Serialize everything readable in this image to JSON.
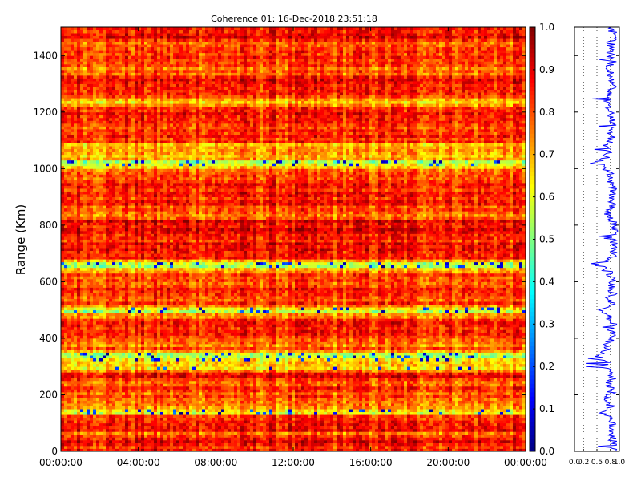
{
  "chart_data": [
    {
      "type": "heatmap",
      "title": "Coherence 01: 16-Dec-2018 23:51:18",
      "xlabel": "",
      "ylabel": "Range (Km)",
      "x_ticks": [
        "00:00:00",
        "04:00:00",
        "08:00:00",
        "12:00:00",
        "16:00:00",
        "20:00:00",
        "00:00:00"
      ],
      "x_range_hours": [
        0,
        24
      ],
      "y_ticks": [
        0,
        200,
        400,
        600,
        800,
        1000,
        1200,
        1400
      ],
      "ylim": [
        0,
        1500
      ],
      "colormap": "jet",
      "value_range": [
        0.0,
        1.0
      ],
      "colorbar_ticks": [
        "0.0",
        "0.1",
        "0.2",
        "0.3",
        "0.4",
        "0.5",
        "0.6",
        "0.7",
        "0.8",
        "0.9",
        "1.0"
      ],
      "grid": false,
      "range_profile_mean": [
        [
          0,
          0.85
        ],
        [
          20,
          0.84
        ],
        [
          40,
          0.86
        ],
        [
          60,
          0.78
        ],
        [
          80,
          0.85
        ],
        [
          100,
          0.82
        ],
        [
          120,
          0.86
        ],
        [
          140,
          0.58
        ],
        [
          160,
          0.82
        ],
        [
          180,
          0.7
        ],
        [
          200,
          0.8
        ],
        [
          220,
          0.84
        ],
        [
          240,
          0.78
        ],
        [
          260,
          0.86
        ],
        [
          280,
          0.82
        ],
        [
          300,
          0.6
        ],
        [
          320,
          0.75
        ],
        [
          340,
          0.5
        ],
        [
          360,
          0.78
        ],
        [
          380,
          0.72
        ],
        [
          400,
          0.84
        ],
        [
          420,
          0.8
        ],
        [
          440,
          0.86
        ],
        [
          460,
          0.82
        ],
        [
          480,
          0.78
        ],
        [
          500,
          0.55
        ],
        [
          520,
          0.83
        ],
        [
          540,
          0.8
        ],
        [
          560,
          0.86
        ],
        [
          580,
          0.8
        ],
        [
          600,
          0.85
        ],
        [
          620,
          0.82
        ],
        [
          640,
          0.78
        ],
        [
          660,
          0.5
        ],
        [
          680,
          0.82
        ],
        [
          700,
          0.86
        ],
        [
          720,
          0.84
        ],
        [
          740,
          0.88
        ],
        [
          760,
          0.84
        ],
        [
          780,
          0.9
        ],
        [
          800,
          0.88
        ],
        [
          820,
          0.86
        ],
        [
          840,
          0.7
        ],
        [
          860,
          0.84
        ],
        [
          880,
          0.86
        ],
        [
          900,
          0.82
        ],
        [
          920,
          0.86
        ],
        [
          940,
          0.8
        ],
        [
          960,
          0.84
        ],
        [
          980,
          0.8
        ],
        [
          1000,
          0.7
        ],
        [
          1020,
          0.55
        ],
        [
          1040,
          0.72
        ],
        [
          1060,
          0.76
        ],
        [
          1080,
          0.65
        ],
        [
          1100,
          0.85
        ],
        [
          1120,
          0.82
        ],
        [
          1140,
          0.86
        ],
        [
          1160,
          0.84
        ],
        [
          1180,
          0.8
        ],
        [
          1200,
          0.84
        ],
        [
          1220,
          0.78
        ],
        [
          1240,
          0.7
        ],
        [
          1260,
          0.84
        ],
        [
          1280,
          0.82
        ],
        [
          1300,
          0.86
        ],
        [
          1320,
          0.84
        ],
        [
          1340,
          0.8
        ],
        [
          1360,
          0.78
        ],
        [
          1380,
          0.84
        ],
        [
          1400,
          0.82
        ],
        [
          1420,
          0.86
        ],
        [
          1440,
          0.8
        ],
        [
          1460,
          0.84
        ],
        [
          1480,
          0.86
        ],
        [
          1500,
          0.82
        ]
      ]
    },
    {
      "type": "line",
      "title": "",
      "xlabel": "",
      "ylabel": "",
      "x_ticks": [
        "0.0",
        "0.2",
        "0.5",
        "0.8",
        "1.0"
      ],
      "xlim": [
        0,
        1
      ],
      "ylim": [
        0,
        1500
      ],
      "grid": true,
      "series_color": "#0000ff"
    }
  ],
  "colors": {
    "background": "#ffffff",
    "line": "#0000ff",
    "axis": "#000000"
  }
}
